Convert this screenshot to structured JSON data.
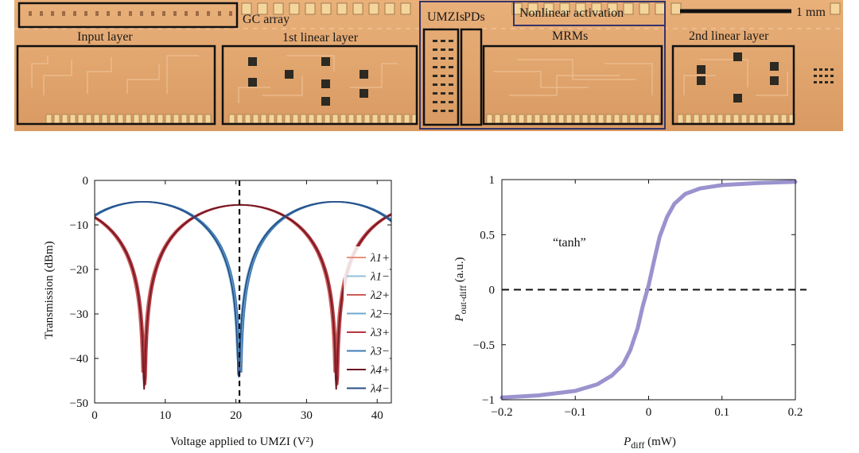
{
  "chip": {
    "labels": {
      "gc_array": "GC array",
      "input_layer": "Input layer",
      "linear1": "1st linear layer",
      "umzis": "UMZIs",
      "pds": "PDs",
      "nonlinear": "Nonlinear activation",
      "scale": "1 mm",
      "mrms": "MRMs",
      "linear2": "2nd linear layer"
    },
    "colors": {
      "die": "#e1a46c",
      "outline": "#111111",
      "region": "#35346a"
    }
  },
  "chart_data": [
    {
      "type": "line",
      "xlabel": "Voltage applied to UMZI (V²)",
      "ylabel": "Transmission (dBm)",
      "xlim": [
        0,
        42
      ],
      "ylim": [
        -50,
        0
      ],
      "xticks": [
        0,
        10,
        20,
        30,
        40
      ],
      "yticks": [
        0,
        -10,
        -20,
        -30,
        -40,
        -50
      ],
      "vline_x": 20.5,
      "grid": false,
      "legend_position": "right",
      "series": [
        {
          "name": "λ1+",
          "color": "#e8917e",
          "minima": [
            7.0,
            34.2
          ],
          "depth": -42
        },
        {
          "name": "λ1−",
          "color": "#92c1dc",
          "minima": [
            20.3
          ],
          "depth": -40
        },
        {
          "name": "λ2+",
          "color": "#cf5a57",
          "minima": [
            6.8,
            34.0
          ],
          "depth": -43
        },
        {
          "name": "λ2−",
          "color": "#6ea9cf",
          "minima": [
            20.5
          ],
          "depth": -41
        },
        {
          "name": "λ3+",
          "color": "#b8363e",
          "minima": [
            7.2,
            34.3
          ],
          "depth": -46
        },
        {
          "name": "λ3−",
          "color": "#3f7bb4",
          "minima": [
            20.7
          ],
          "depth": -43
        },
        {
          "name": "λ4+",
          "color": "#6d1824",
          "minima": [
            7.0,
            34.1
          ],
          "depth": -47
        },
        {
          "name": "λ4−",
          "color": "#274d86",
          "minima": [
            20.4
          ],
          "depth": -44
        }
      ]
    },
    {
      "type": "line",
      "xlabel": "P_diff (mW)",
      "ylabel": "P_out-diff (a.u.)",
      "xlim": [
        -0.2,
        0.2
      ],
      "ylim": [
        -1,
        1
      ],
      "xticks": [
        -0.2,
        -0.1,
        0,
        0.1,
        0.2
      ],
      "yticks": [
        1,
        0.5,
        0,
        -0.5,
        -1
      ],
      "hline_y": 0,
      "annotation": "“tanh”",
      "grid": false,
      "series": [
        {
          "color": "#9a93ce",
          "x": [
            -0.2,
            -0.15,
            -0.1,
            -0.07,
            -0.05,
            -0.035,
            -0.025,
            -0.015,
            -0.008,
            0,
            0.008,
            0.015,
            0.025,
            0.035,
            0.05,
            0.07,
            0.1,
            0.15,
            0.2
          ],
          "y": [
            -0.98,
            -0.96,
            -0.92,
            -0.86,
            -0.78,
            -0.68,
            -0.55,
            -0.35,
            -0.15,
            0.04,
            0.28,
            0.48,
            0.66,
            0.78,
            0.87,
            0.92,
            0.95,
            0.97,
            0.98
          ]
        }
      ]
    }
  ]
}
